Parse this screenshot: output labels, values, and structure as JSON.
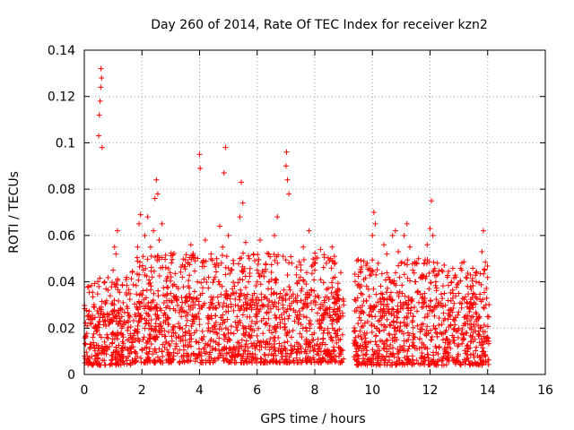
{
  "chart_data": {
    "type": "scatter",
    "title": "Day 260 of 2014, Rate Of TEC Index for receiver kzn2",
    "xlabel": "GPS time / hours",
    "ylabel": "ROTI / TECUs",
    "xlim": [
      0,
      16
    ],
    "ylim": [
      0,
      0.14
    ],
    "xticks": [
      "0",
      "2",
      "4",
      "6",
      "8",
      "10",
      "12",
      "14",
      "16"
    ],
    "yticks": [
      "0",
      "0.02",
      "0.04",
      "0.06",
      "0.08",
      "0.1",
      "0.12",
      "0.14"
    ],
    "grid": true,
    "marker": "+",
    "color": "#ff0000",
    "series": [
      {
        "name": "ROTI",
        "points": [
          [
            0.05,
            0.013
          ],
          [
            0.1,
            0.021
          ],
          [
            0.15,
            0.038
          ],
          [
            0.2,
            0.025
          ],
          [
            0.3,
            0.016
          ],
          [
            0.35,
            0.029
          ],
          [
            0.45,
            0.019
          ],
          [
            0.5,
            0.103
          ],
          [
            0.52,
            0.112
          ],
          [
            0.55,
            0.118
          ],
          [
            0.57,
            0.124
          ],
          [
            0.58,
            0.132
          ],
          [
            0.6,
            0.128
          ],
          [
            0.62,
            0.098
          ],
          [
            0.7,
            0.014
          ],
          [
            0.8,
            0.026
          ],
          [
            0.9,
            0.034
          ],
          [
            1.0,
            0.045
          ],
          [
            1.05,
            0.055
          ],
          [
            1.1,
            0.052
          ],
          [
            1.15,
            0.062
          ],
          [
            1.25,
            0.022
          ],
          [
            1.35,
            0.031
          ],
          [
            1.45,
            0.041
          ],
          [
            1.55,
            0.015
          ],
          [
            1.7,
            0.012
          ],
          [
            1.8,
            0.025
          ],
          [
            1.85,
            0.055
          ],
          [
            1.9,
            0.065
          ],
          [
            1.95,
            0.069
          ],
          [
            2.05,
            0.045
          ],
          [
            2.1,
            0.06
          ],
          [
            2.2,
            0.068
          ],
          [
            2.3,
            0.055
          ],
          [
            2.4,
            0.062
          ],
          [
            2.45,
            0.076
          ],
          [
            2.5,
            0.084
          ],
          [
            2.55,
            0.078
          ],
          [
            2.6,
            0.058
          ],
          [
            2.65,
            0.046
          ],
          [
            2.7,
            0.065
          ],
          [
            2.8,
            0.034
          ],
          [
            2.9,
            0.024
          ],
          [
            3.0,
            0.035
          ],
          [
            3.1,
            0.018
          ],
          [
            3.2,
            0.038
          ],
          [
            3.3,
            0.02
          ],
          [
            3.4,
            0.042
          ],
          [
            3.5,
            0.031
          ],
          [
            3.6,
            0.048
          ],
          [
            3.7,
            0.056
          ],
          [
            3.8,
            0.025
          ],
          [
            3.9,
            0.014
          ],
          [
            4.0,
            0.095
          ],
          [
            4.02,
            0.089
          ],
          [
            4.1,
            0.035
          ],
          [
            4.2,
            0.058
          ],
          [
            4.3,
            0.022
          ],
          [
            4.4,
            0.052
          ],
          [
            4.5,
            0.041
          ],
          [
            4.6,
            0.048
          ],
          [
            4.7,
            0.064
          ],
          [
            4.8,
            0.055
          ],
          [
            4.85,
            0.087
          ],
          [
            4.9,
            0.098
          ],
          [
            5.0,
            0.06
          ],
          [
            5.1,
            0.045
          ],
          [
            5.2,
            0.035
          ],
          [
            5.3,
            0.025
          ],
          [
            5.4,
            0.068
          ],
          [
            5.45,
            0.083
          ],
          [
            5.5,
            0.074
          ],
          [
            5.6,
            0.057
          ],
          [
            5.7,
            0.04
          ],
          [
            5.8,
            0.028
          ],
          [
            5.9,
            0.035
          ],
          [
            6.0,
            0.045
          ],
          [
            6.1,
            0.058
          ],
          [
            6.2,
            0.03
          ],
          [
            6.3,
            0.022
          ],
          [
            6.4,
            0.052
          ],
          [
            6.5,
            0.041
          ],
          [
            6.6,
            0.06
          ],
          [
            6.7,
            0.068
          ],
          [
            6.8,
            0.035
          ],
          [
            6.9,
            0.051
          ],
          [
            7.0,
            0.09
          ],
          [
            7.02,
            0.096
          ],
          [
            7.05,
            0.084
          ],
          [
            7.1,
            0.078
          ],
          [
            7.2,
            0.048
          ],
          [
            7.3,
            0.023
          ],
          [
            7.4,
            0.034
          ],
          [
            7.5,
            0.042
          ],
          [
            7.6,
            0.055
          ],
          [
            7.7,
            0.039
          ],
          [
            7.8,
            0.062
          ],
          [
            7.9,
            0.028
          ],
          [
            8.0,
            0.045
          ],
          [
            8.1,
            0.034
          ],
          [
            8.2,
            0.054
          ],
          [
            8.3,
            0.024
          ],
          [
            8.4,
            0.048
          ],
          [
            8.5,
            0.018
          ],
          [
            8.6,
            0.055
          ],
          [
            8.7,
            0.042
          ],
          [
            8.8,
            0.037
          ],
          [
            8.9,
            0.044
          ],
          [
            9.0,
            0.03
          ],
          [
            9.4,
            0.014
          ],
          [
            9.5,
            0.022
          ],
          [
            9.6,
            0.035
          ],
          [
            9.7,
            0.041
          ],
          [
            9.8,
            0.038
          ],
          [
            9.9,
            0.045
          ],
          [
            10.0,
            0.06
          ],
          [
            10.05,
            0.07
          ],
          [
            10.1,
            0.065
          ],
          [
            10.2,
            0.048
          ],
          [
            10.3,
            0.035
          ],
          [
            10.4,
            0.056
          ],
          [
            10.5,
            0.052
          ],
          [
            10.6,
            0.041
          ],
          [
            10.7,
            0.06
          ],
          [
            10.8,
            0.062
          ],
          [
            10.9,
            0.053
          ],
          [
            11.0,
            0.048
          ],
          [
            11.1,
            0.06
          ],
          [
            11.2,
            0.065
          ],
          [
            11.3,
            0.055
          ],
          [
            11.4,
            0.045
          ],
          [
            11.5,
            0.04
          ],
          [
            11.6,
            0.05
          ],
          [
            11.7,
            0.042
          ],
          [
            11.8,
            0.048
          ],
          [
            11.9,
            0.056
          ],
          [
            12.0,
            0.063
          ],
          [
            12.05,
            0.075
          ],
          [
            12.1,
            0.06
          ],
          [
            12.2,
            0.04
          ],
          [
            12.3,
            0.03
          ],
          [
            12.4,
            0.045
          ],
          [
            12.5,
            0.035
          ],
          [
            12.6,
            0.042
          ],
          [
            12.7,
            0.028
          ],
          [
            12.8,
            0.035
          ],
          [
            12.9,
            0.042
          ],
          [
            13.0,
            0.035
          ],
          [
            13.1,
            0.045
          ],
          [
            13.2,
            0.022
          ],
          [
            13.3,
            0.038
          ],
          [
            13.4,
            0.043
          ],
          [
            13.5,
            0.035
          ],
          [
            13.6,
            0.04
          ],
          [
            13.7,
            0.025
          ],
          [
            13.8,
            0.053
          ],
          [
            13.85,
            0.062
          ],
          [
            13.9,
            0.045
          ],
          [
            14.0,
            0.025
          ]
        ]
      }
    ],
    "density_segments": [
      {
        "xmin": 0.0,
        "xmax": 1.65,
        "ymin": 0.004,
        "ymax": 0.028
      },
      {
        "xmin": 1.65,
        "xmax": 9.0,
        "ymin": 0.005,
        "ymax": 0.035
      },
      {
        "xmin": 9.35,
        "xmax": 14.05,
        "ymin": 0.004,
        "ymax": 0.033
      }
    ]
  }
}
